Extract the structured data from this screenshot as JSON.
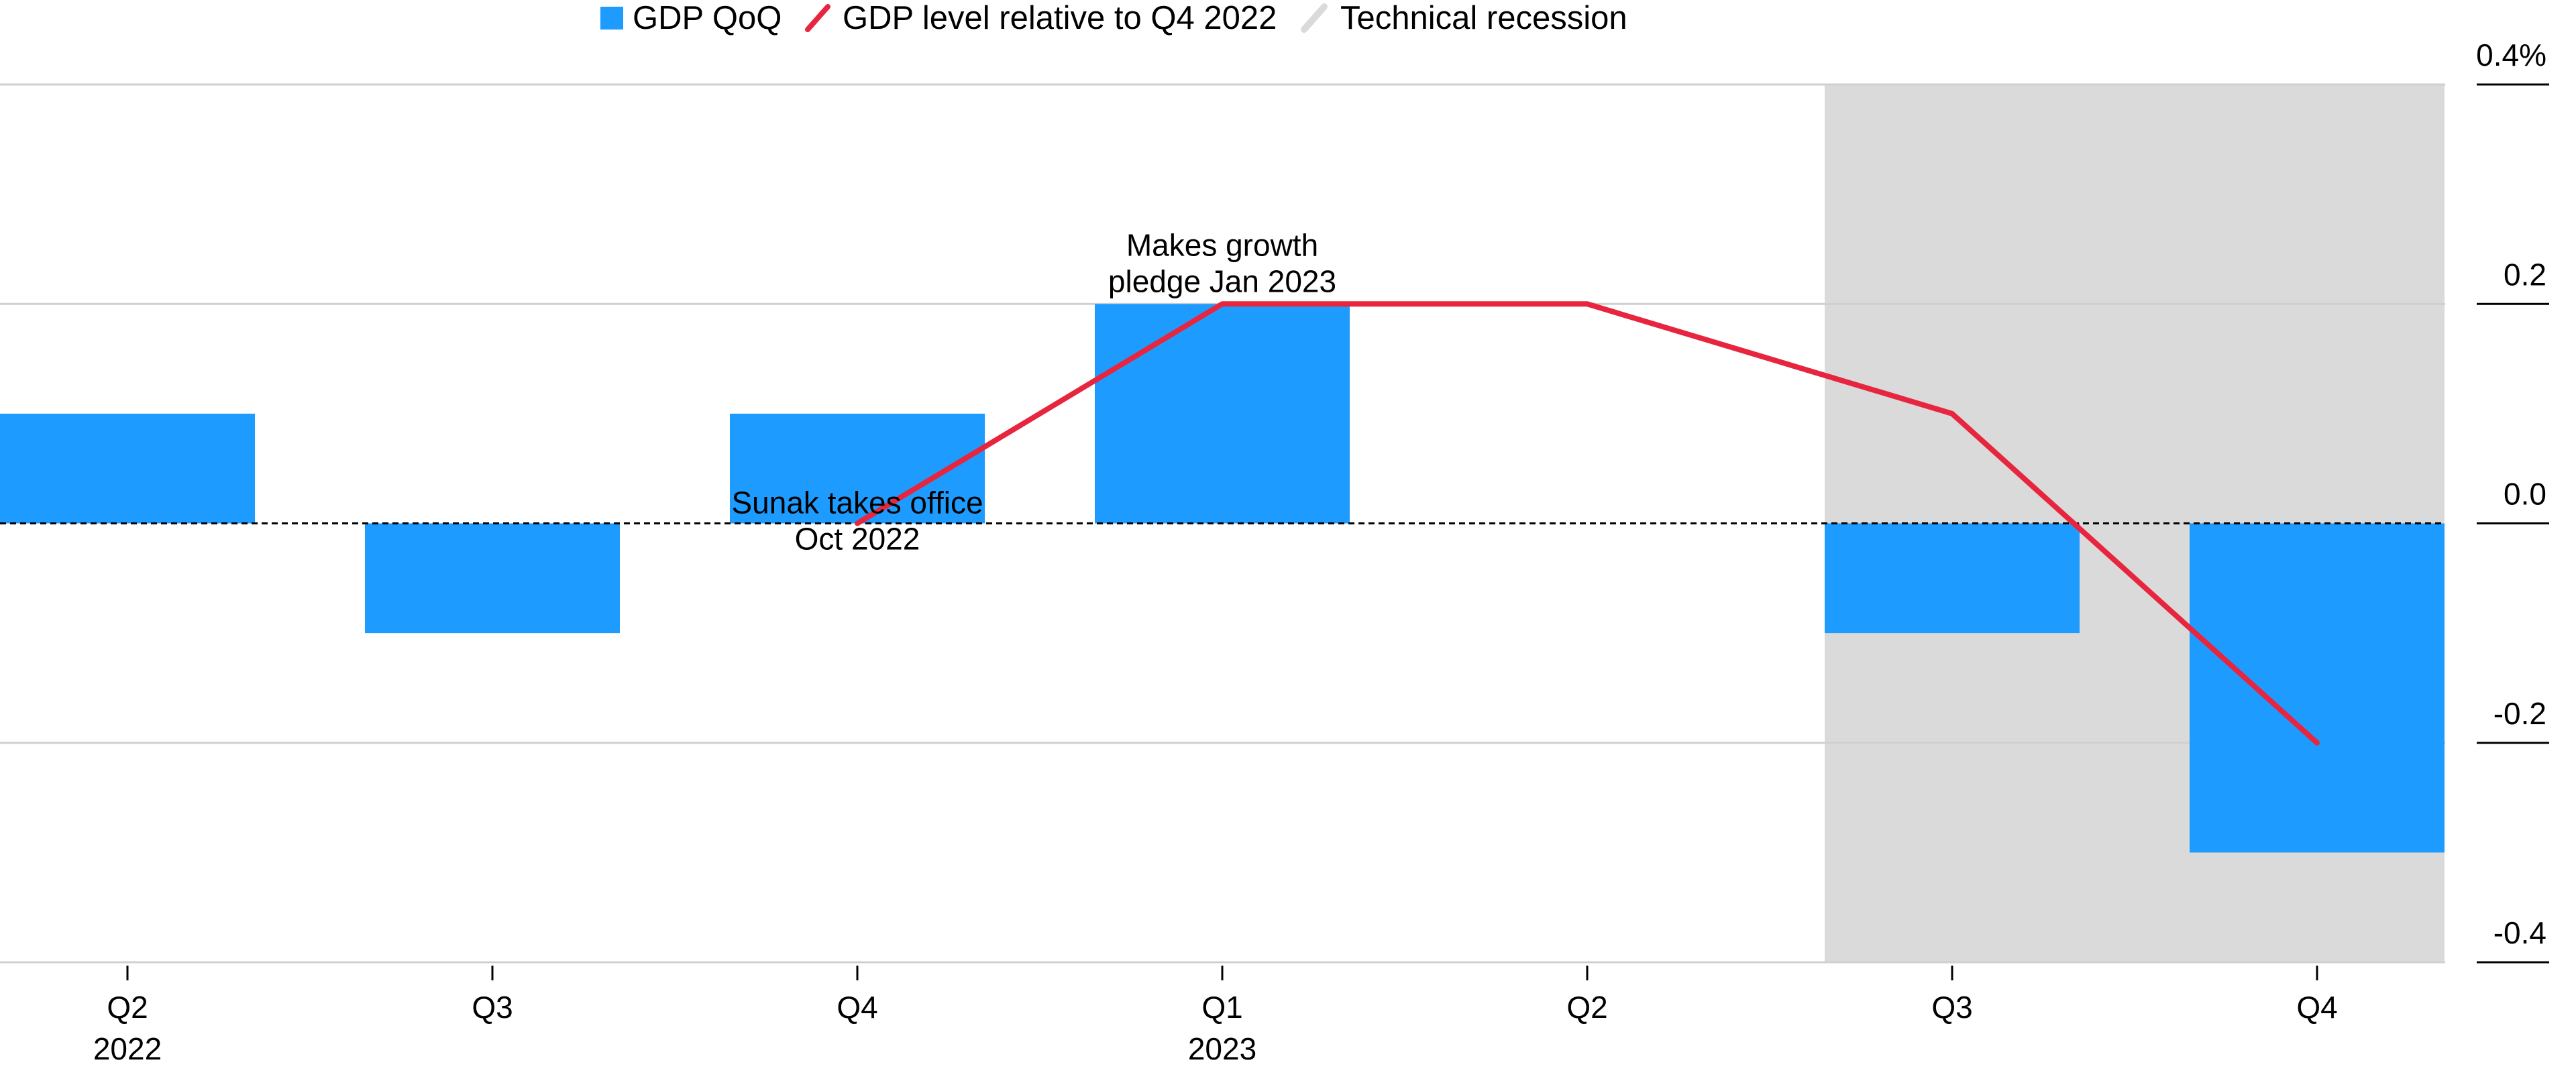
{
  "chart_data": {
    "type": "bar",
    "categories": [
      "Q2",
      "Q3",
      "Q4",
      "Q1",
      "Q2",
      "Q3",
      "Q4"
    ],
    "year_labels": [
      "2022",
      "",
      "",
      "2023",
      "",
      "",
      ""
    ],
    "series": [
      {
        "name": "GDP QoQ",
        "type": "bar",
        "values": [
          0.1,
          -0.1,
          0.1,
          0.2,
          0.0,
          -0.1,
          -0.3
        ]
      },
      {
        "name": "GDP level relative to Q4 2022",
        "type": "line",
        "values": [
          null,
          null,
          0.0,
          0.2,
          0.2,
          0.1,
          -0.2
        ]
      }
    ],
    "shaded_region": {
      "name": "Technical recession",
      "categories": [
        "Q3",
        "Q4"
      ],
      "category_indices": [
        5,
        6
      ]
    },
    "legend": [
      {
        "label": "GDP QoQ",
        "kind": "square"
      },
      {
        "label": "GDP level relative to Q4 2022",
        "kind": "line"
      },
      {
        "label": "Technical recession",
        "kind": "band"
      }
    ],
    "legend_position": "top",
    "ylim": [
      -0.4,
      0.4
    ],
    "yticks": [
      {
        "value": 0.4,
        "label": "0.4%"
      },
      {
        "value": 0.2,
        "label": "0.2"
      },
      {
        "value": 0.0,
        "label": "0.0"
      },
      {
        "value": -0.2,
        "label": "-0.2"
      },
      {
        "value": -0.4,
        "label": "-0.4"
      }
    ],
    "annotations": [
      {
        "category_index": 2,
        "value": 0.0,
        "lines": [
          "Sunak takes office",
          "Oct 2022"
        ]
      },
      {
        "category_index": 3,
        "value": 0.2,
        "lines": [
          "Makes growth",
          "pledge Jan 2023"
        ]
      }
    ],
    "colors": {
      "bar": "#1e9bff",
      "line": "#e8253f",
      "band": "#dadada",
      "grid": "#d0d0d0",
      "zero": "#000000"
    },
    "title": "",
    "xlabel": "",
    "ylabel": ""
  }
}
